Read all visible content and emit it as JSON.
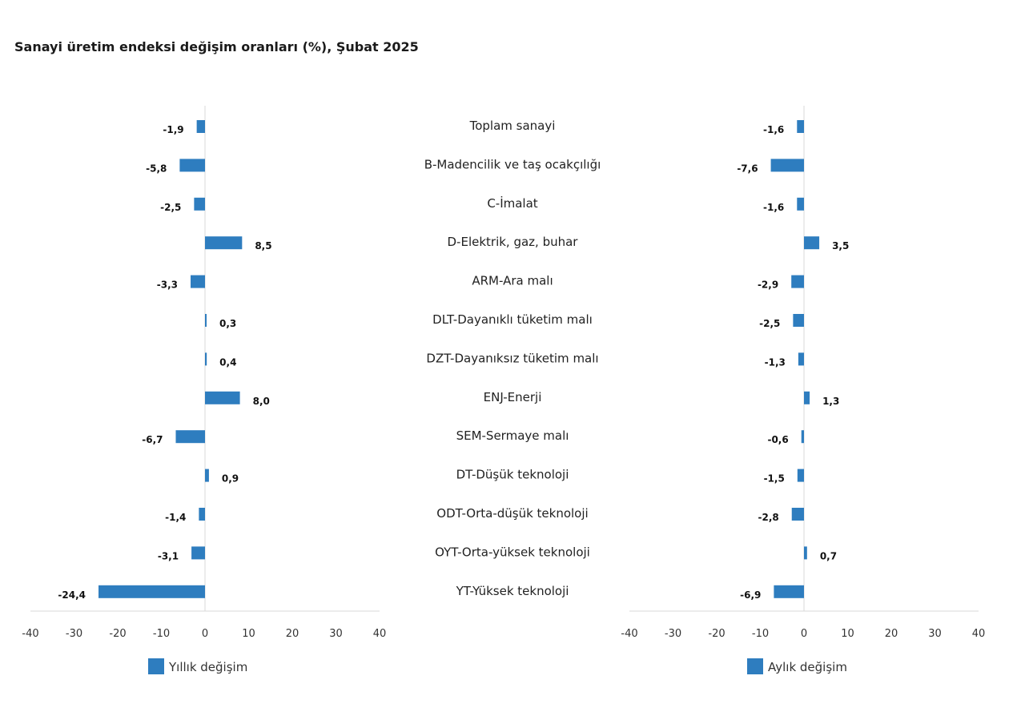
{
  "chart_data": [
    {
      "type": "bar",
      "orientation": "horizontal",
      "title": "Sanayi üretim endeksi değişim oranları (%), Şubat 2025",
      "categories": [
        "Toplam sanayi",
        "B-Madencilik ve taş ocakçılığı",
        "C-İmalat",
        "D-Elektrik, gaz, buhar",
        "ARM-Ara malı",
        "DLT-Dayanıklı tüketim malı",
        "DZT-Dayanıksız tüketim malı",
        "ENJ-Enerji",
        "SEM-Sermaye malı",
        "DT-Düşük teknoloji",
        "ODT-Orta-düşük teknoloji",
        "OYT-Orta-yüksek teknoloji",
        "YT-Yüksek teknoloji"
      ],
      "series": [
        {
          "name": "Yıllık değişim",
          "values": [
            -1.9,
            -5.8,
            -2.5,
            8.5,
            -3.3,
            0.3,
            0.4,
            8.0,
            -6.7,
            0.9,
            -1.4,
            -3.1,
            -24.4
          ],
          "labels": [
            "-1,9",
            "-5,8",
            "-2,5",
            "8,5",
            "-3,3",
            "0,3",
            "0,4",
            "8,0",
            "-6,7",
            "0,9",
            "-1,4",
            "-3,1",
            "-24,4"
          ]
        }
      ],
      "xlim": [
        -40,
        40
      ],
      "xticks": [
        "-40",
        "-30",
        "-20",
        "-10",
        "0",
        "10",
        "20",
        "30",
        "40"
      ],
      "color": "#2e7dbf",
      "legend": "bottom-left"
    },
    {
      "type": "bar",
      "orientation": "horizontal",
      "series": [
        {
          "name": "Aylık değişim",
          "values": [
            -1.6,
            -7.6,
            -1.6,
            3.5,
            -2.9,
            -2.5,
            -1.3,
            1.3,
            -0.6,
            -1.5,
            -2.8,
            0.7,
            -6.9
          ],
          "labels": [
            "-1,6",
            "-7,6",
            "-1,6",
            "3,5",
            "-2,9",
            "-2,5",
            "-1,3",
            "1,3",
            "-0,6",
            "-1,5",
            "-2,8",
            "0,7",
            "-6,9"
          ]
        }
      ],
      "xlim": [
        -40,
        40
      ],
      "xticks": [
        "-40",
        "-30",
        "-20",
        "-10",
        "0",
        "10",
        "20",
        "30",
        "40"
      ],
      "color": "#2e7dbf",
      "legend": "bottom-left"
    }
  ]
}
